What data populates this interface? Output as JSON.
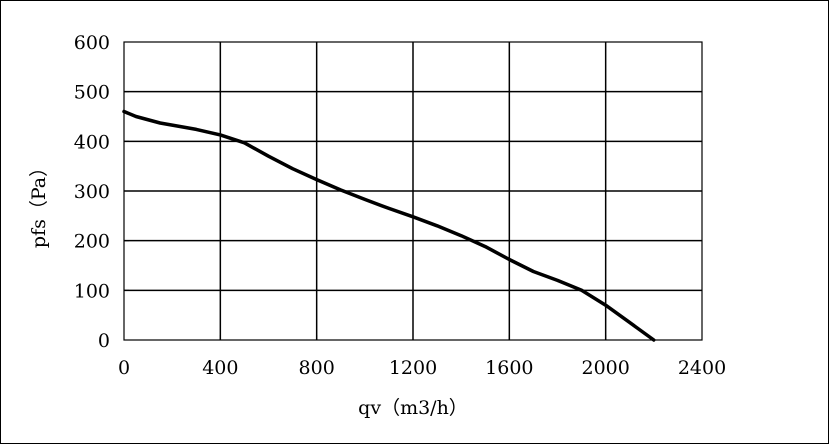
{
  "chart_data": {
    "type": "line",
    "title": "",
    "xlabel": "qv（m3/h）",
    "ylabel": "pfs（Pa）",
    "xlim": [
      0,
      2400
    ],
    "ylim": [
      0,
      600
    ],
    "xticks": [
      0,
      400,
      800,
      1200,
      1600,
      2000,
      2400
    ],
    "yticks": [
      0,
      100,
      200,
      300,
      400,
      500,
      600
    ],
    "grid": true,
    "legend": "none",
    "line_color": "#000000",
    "series": [
      {
        "x": [
          0,
          50,
          150,
          300,
          400,
          500,
          600,
          700,
          800,
          900,
          1000,
          1100,
          1200,
          1300,
          1400,
          1500,
          1600,
          1700,
          1800,
          1900,
          2000,
          2100,
          2200
        ],
        "values": [
          460,
          450,
          437,
          424,
          413,
          397,
          370,
          345,
          323,
          302,
          283,
          265,
          248,
          230,
          210,
          188,
          162,
          138,
          120,
          100,
          70,
          35,
          0
        ]
      }
    ]
  }
}
